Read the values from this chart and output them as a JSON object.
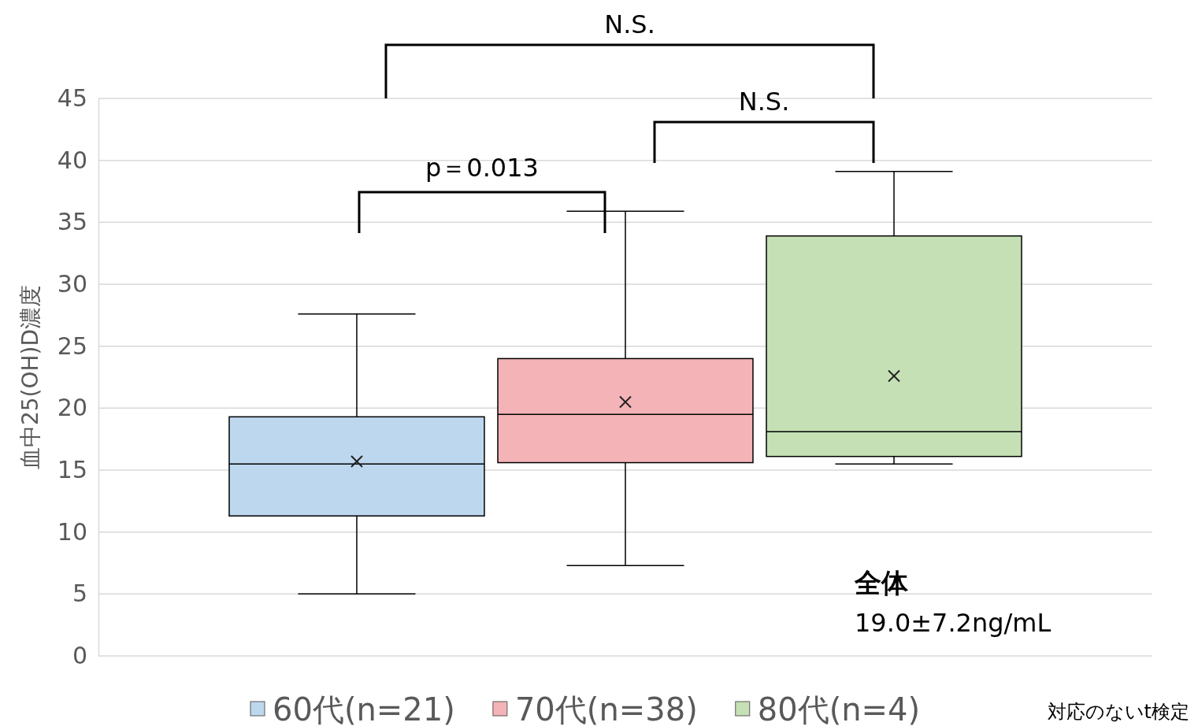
{
  "chart_data": {
    "type": "box",
    "ylabel": "血中25(OH)D濃度",
    "categories": [
      null
    ],
    "ylim": [
      0,
      45
    ],
    "yticks": [
      0,
      5,
      10,
      15,
      20,
      25,
      30,
      35,
      40,
      45
    ],
    "grid": "y",
    "legend": "bottom",
    "series": [
      {
        "name": "60代(n=21)",
        "color": "#bdd7ee",
        "boxes": [
          {
            "low": 5.0,
            "q1": 11.3,
            "median": 15.5,
            "q3": 19.3,
            "high": 27.6,
            "mean": 15.7
          }
        ]
      },
      {
        "name": "70代(n=38)",
        "color": "#f4b3b7",
        "boxes": [
          {
            "low": 7.3,
            "q1": 15.6,
            "median": 19.5,
            "q3": 24.0,
            "high": 35.9,
            "mean": 20.5
          }
        ]
      },
      {
        "name": "80代(n=4)",
        "color": "#c5e0b4",
        "boxes": [
          {
            "low": 15.5,
            "q1": 16.1,
            "median": 18.1,
            "q3": 33.9,
            "high": 39.1,
            "mean": 22.6
          }
        ]
      }
    ],
    "annotations": [
      "N.S.",
      "N.S.",
      "p＝0.013",
      "全体",
      "19.0±7.2ng/mL",
      "対応のないt検定"
    ]
  }
}
